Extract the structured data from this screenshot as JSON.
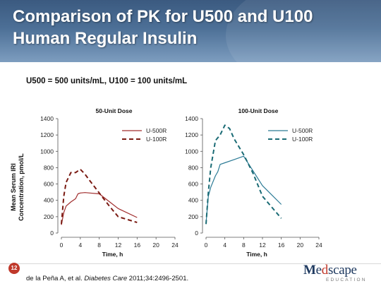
{
  "slide": {
    "title_line1": "Comparison of PK for U500 and U100",
    "title_line2": "Human Regular Insulin",
    "subtitle": "U500 = 500 units/mL, U100 = 100 units/mL",
    "page_number": "12",
    "citation_prefix": "de la Peña A, et al. ",
    "citation_journal": "Diabetes Care",
    "citation_suffix": " 2011;34:2496-2501.",
    "logo_word_m": "M",
    "logo_word_e": "e",
    "logo_word_d": "d",
    "logo_word_rest": "scape",
    "logo_sub": "EDUCATION",
    "colors": {
      "u500_left": "#a02c2c",
      "u100_left": "#7a1a12",
      "u500_right": "#2b7a95",
      "u100_right": "#1a6b75"
    }
  },
  "chart_data": [
    {
      "type": "line",
      "title": "50-Unit Dose",
      "xlabel": "Time, h",
      "ylabel_line1": "Mean Serum IRI",
      "ylabel_line2": "Concentration, pmol/L",
      "xlim": [
        0,
        24
      ],
      "ylim": [
        0,
        1400
      ],
      "xticks": [
        0,
        4,
        8,
        12,
        16,
        20,
        24
      ],
      "yticks": [
        0,
        200,
        400,
        600,
        800,
        1000,
        1200,
        1400
      ],
      "legend_position": "top-right",
      "series": [
        {
          "name": "U-500R",
          "style": "solid",
          "x": [
            0,
            0.5,
            1,
            2,
            3,
            3.5,
            4,
            5,
            6,
            8,
            10,
            12,
            16
          ],
          "y": [
            100,
            250,
            330,
            380,
            420,
            480,
            490,
            495,
            490,
            480,
            390,
            300,
            190
          ]
        },
        {
          "name": "U-100R",
          "style": "dashed",
          "x": [
            0,
            0.5,
            1,
            2,
            3,
            4,
            5,
            6,
            8,
            10,
            12,
            16
          ],
          "y": [
            110,
            450,
            620,
            740,
            740,
            780,
            720,
            640,
            490,
            340,
            200,
            130
          ]
        }
      ]
    },
    {
      "type": "line",
      "title": "100-Unit Dose",
      "xlabel": "Time, h",
      "xlim": [
        0,
        24
      ],
      "ylim": [
        0,
        1400
      ],
      "xticks": [
        0,
        4,
        8,
        12,
        16,
        20,
        24
      ],
      "yticks": [
        0,
        200,
        400,
        600,
        800,
        1000,
        1200,
        1400
      ],
      "legend_position": "top-right",
      "series": [
        {
          "name": "U-500R",
          "style": "solid",
          "x": [
            0,
            0.5,
            1,
            2,
            2.5,
            3,
            4,
            6,
            8,
            10,
            12,
            16
          ],
          "y": [
            120,
            450,
            560,
            700,
            750,
            840,
            860,
            900,
            940,
            760,
            580,
            350
          ]
        },
        {
          "name": "U-100R",
          "style": "dashed",
          "x": [
            0,
            0.5,
            1,
            2,
            3,
            4,
            5,
            6,
            8,
            10,
            12,
            16
          ],
          "y": [
            110,
            500,
            800,
            1130,
            1200,
            1320,
            1280,
            1150,
            960,
            730,
            450,
            180
          ]
        }
      ]
    }
  ]
}
